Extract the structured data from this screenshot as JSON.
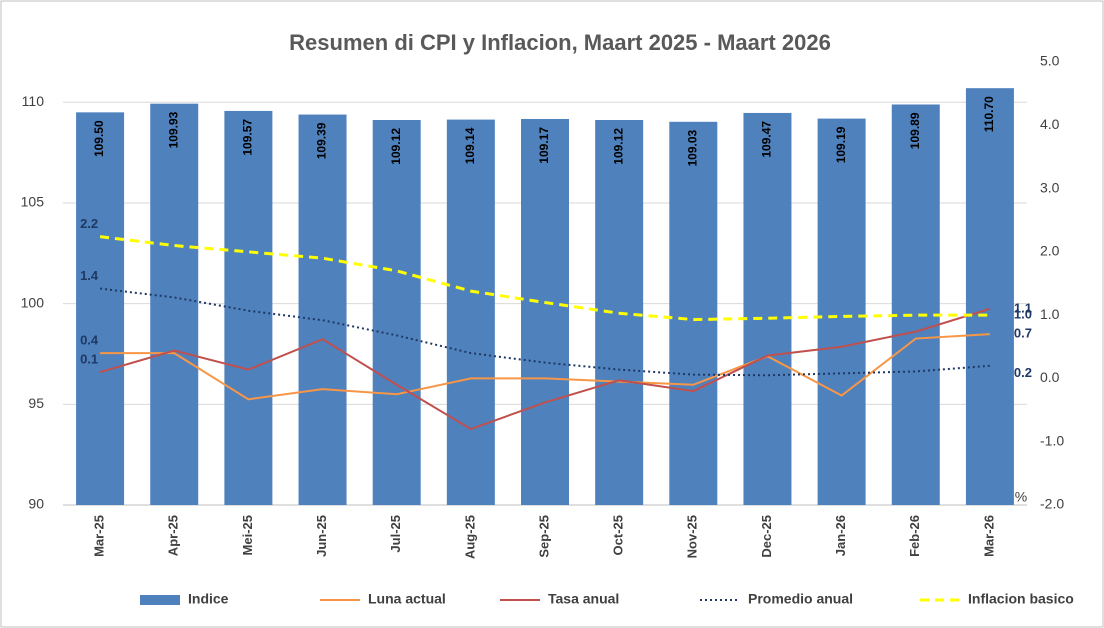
{
  "chart_data": {
    "type": "combo",
    "title": "Resumen di CPI y Inflacion, Maart 2025 - Maart 2026",
    "categories": [
      "Mar-25",
      "Apr-25",
      "Mei-25",
      "Jun-25",
      "Jul-25",
      "Aug-25",
      "Sep-25",
      "Oct-25",
      "Nov-25",
      "Dec-25",
      "Jan-26",
      "Feb-26",
      "Mar-26"
    ],
    "ylim": [
      90,
      112
    ],
    "yticks": [
      90,
      95,
      100,
      105,
      110
    ],
    "y2lim": [
      -2,
      5
    ],
    "y2ticks": [
      {
        "value": -2,
        "label": "-2.0"
      },
      {
        "value": -1,
        "label": "-1.0"
      },
      {
        "value": 0,
        "label": "0.0"
      },
      {
        "value": 1,
        "label": "1.0"
      },
      {
        "value": 2,
        "label": "2.0"
      },
      {
        "value": 3,
        "label": "3.0"
      },
      {
        "value": 4,
        "label": "4.0"
      },
      {
        "value": 5,
        "label": "5.0"
      }
    ],
    "y2label": "%",
    "grid": true,
    "legend": "bottom",
    "series": [
      {
        "name": "Indice",
        "type": "bar",
        "color": "#4f81bd",
        "values": [
          109.5,
          109.93,
          109.57,
          109.39,
          109.12,
          109.14,
          109.17,
          109.12,
          109.03,
          109.47,
          109.19,
          109.89,
          110.7
        ],
        "value_labels": [
          "109.50",
          "109.93",
          "109.57",
          "109.39",
          "109.12",
          "109.14",
          "109.17",
          "109.12",
          "109.03",
          "109.47",
          "109.19",
          "109.89",
          "110.70"
        ]
      },
      {
        "name": "Luna actual",
        "type": "line",
        "axis": "y2",
        "color": "#f79646",
        "dash": "solid",
        "values": [
          0.4,
          0.4,
          -0.33,
          -0.17,
          -0.25,
          0.0,
          0.0,
          -0.05,
          -0.1,
          0.35,
          -0.27,
          0.63,
          0.7
        ],
        "value_labels": [
          "0.4",
          null,
          null,
          null,
          null,
          null,
          null,
          null,
          null,
          null,
          null,
          null,
          "0.7"
        ]
      },
      {
        "name": "Tasa anual",
        "type": "line",
        "axis": "y2",
        "color": "#c0504d",
        "dash": "solid",
        "values": [
          0.1,
          0.44,
          0.14,
          0.62,
          -0.1,
          -0.8,
          -0.38,
          -0.03,
          -0.2,
          0.36,
          0.5,
          0.74,
          1.1
        ],
        "value_labels": [
          "0.1",
          null,
          null,
          null,
          null,
          null,
          null,
          null,
          null,
          null,
          null,
          null,
          "1.1"
        ]
      },
      {
        "name": "Promedio anual",
        "type": "line",
        "axis": "y2",
        "color": "#1f3864",
        "dash": "dotted",
        "values": [
          1.42,
          1.28,
          1.07,
          0.92,
          0.68,
          0.4,
          0.25,
          0.14,
          0.06,
          0.05,
          0.08,
          0.11,
          0.2
        ],
        "value_labels": [
          "1.4",
          null,
          null,
          null,
          null,
          null,
          null,
          null,
          null,
          null,
          null,
          null,
          "0.2"
        ]
      },
      {
        "name": "Inflacion basico",
        "type": "line",
        "axis": "y2",
        "color": "#ffff00",
        "dash": "dashed",
        "values": [
          2.24,
          2.1,
          2.0,
          1.9,
          1.7,
          1.38,
          1.2,
          1.03,
          0.93,
          0.95,
          0.98,
          1.0,
          1.0
        ],
        "value_labels": [
          "2.2",
          null,
          null,
          null,
          null,
          null,
          null,
          null,
          null,
          null,
          null,
          null,
          "1.0"
        ]
      }
    ]
  }
}
